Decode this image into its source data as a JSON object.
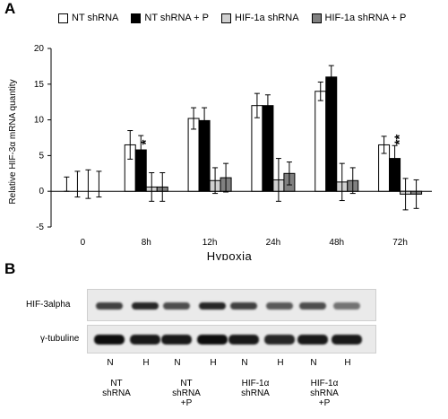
{
  "panel_a_label": "A",
  "panel_b_label": "B",
  "legend": [
    {
      "label": "NT shRNA",
      "color": "#ffffff"
    },
    {
      "label": "NT shRNA + P",
      "color": "#000000"
    },
    {
      "label": "HIF-1a shRNA",
      "color": "#d0d0d0"
    },
    {
      "label": "HIF-1a shRNA + P",
      "color": "#808080"
    }
  ],
  "chart_data": {
    "type": "bar",
    "categories": [
      "0",
      "8h",
      "12h",
      "24h",
      "48h",
      "72h"
    ],
    "xlabel": "Hypoxia",
    "ylabel": "Relative HIF-3α mRNA quantity",
    "ylim": [
      -5,
      20
    ],
    "yticks": [
      -5,
      0,
      5,
      10,
      15,
      20
    ],
    "series": [
      {
        "name": "NT shRNA",
        "color": "#ffffff",
        "values": [
          1.0,
          6.5,
          10.2,
          12.0,
          14.0,
          6.5
        ],
        "errors": [
          1.0,
          2.0,
          1.5,
          1.7,
          1.3,
          1.2
        ]
      },
      {
        "name": "NT shRNA + P",
        "color": "#000000",
        "values": [
          1.0,
          5.8,
          9.9,
          12.0,
          16.0,
          4.6
        ],
        "errors": [
          1.8,
          2.0,
          1.8,
          1.5,
          1.6,
          1.8
        ]
      },
      {
        "name": "HIF-1a shRNA",
        "color": "#d0d0d0",
        "values": [
          1.0,
          0.6,
          1.5,
          1.6,
          1.3,
          -0.4
        ],
        "errors": [
          2.0,
          2.0,
          1.8,
          3.0,
          2.6,
          2.2
        ]
      },
      {
        "name": "HIF-1a shRNA + P",
        "color": "#808080",
        "values": [
          1.0,
          0.6,
          1.9,
          2.5,
          1.5,
          -0.4
        ],
        "errors": [
          1.8,
          2.0,
          2.0,
          1.6,
          1.8,
          2.0
        ]
      }
    ],
    "annotations": [
      "",
      "*",
      "**",
      "***",
      "***",
      "**"
    ],
    "grid": false
  },
  "blot": {
    "rows": [
      "HIF-3alpha",
      "γ-tubuline"
    ],
    "lanes": [
      "N",
      "H",
      "N",
      "H",
      "N",
      "H",
      "N",
      "H"
    ],
    "groups": [
      "NT\nshRNA",
      "NT\nshRNA\n+P",
      "HIF-1α\nshRNA",
      "HIF-1α\nshRNA\n+P"
    ],
    "hif3_intensity": [
      0.75,
      0.85,
      0.7,
      0.85,
      0.75,
      0.65,
      0.7,
      0.55
    ],
    "tubulin_intensity": [
      0.95,
      0.9,
      0.9,
      0.95,
      0.9,
      0.85,
      0.9,
      0.9
    ]
  }
}
